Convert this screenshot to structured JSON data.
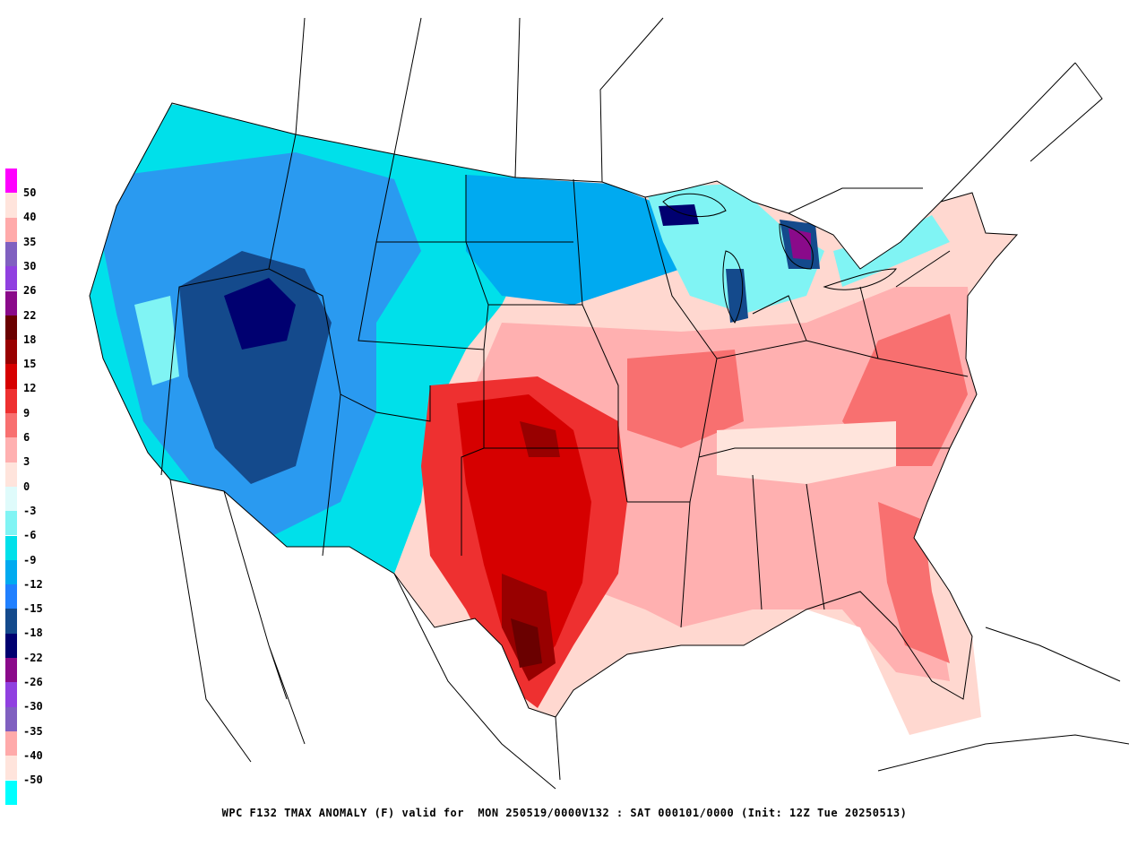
{
  "caption": "WPC F132 TMAX ANOMALY (F) valid for  MON 250519/0000V132 : SAT 000101/0000 (Init: 12Z Tue 20250513)",
  "legend": [
    {
      "label": "50",
      "color": "#ff00ff"
    },
    {
      "label": "40",
      "color": "#ffe4dc"
    },
    {
      "label": "35",
      "color": "#ffaaaa"
    },
    {
      "label": "30",
      "color": "#8060c0"
    },
    {
      "label": "26",
      "color": "#9040e0"
    },
    {
      "label": "22",
      "color": "#8a0a8a"
    },
    {
      "label": "18",
      "color": "#6a0000"
    },
    {
      "label": "15",
      "color": "#980000"
    },
    {
      "label": "12",
      "color": "#d60000"
    },
    {
      "label": "9",
      "color": "#ee3030"
    },
    {
      "label": "6",
      "color": "#f87070"
    },
    {
      "label": "3",
      "color": "#ffb0b0"
    },
    {
      "label": "0",
      "color": "#ffe4dc"
    },
    {
      "label": "-3",
      "color": "#dffbfb"
    },
    {
      "label": "-6",
      "color": "#80f4f4"
    },
    {
      "label": "-9",
      "color": "#00e0ea"
    },
    {
      "label": "-12",
      "color": "#00aaf0"
    },
    {
      "label": "-15",
      "color": "#2080ff"
    },
    {
      "label": "-18",
      "color": "#144a8c"
    },
    {
      "label": "-22",
      "color": "#000070"
    },
    {
      "label": "-26",
      "color": "#8a0a8a"
    },
    {
      "label": "-30",
      "color": "#9040e0"
    },
    {
      "label": "-35",
      "color": "#8060c0"
    },
    {
      "label": "-40",
      "color": "#ffaaaa"
    },
    {
      "label": "-50",
      "color": "#ffe4dc"
    },
    {
      "label": "",
      "color": "#00ffff"
    }
  ],
  "anomaly_fields": {
    "warm_core_region": "Southern Plains / Texas",
    "cool_core_region": "Intermountain West / Great Basin"
  }
}
